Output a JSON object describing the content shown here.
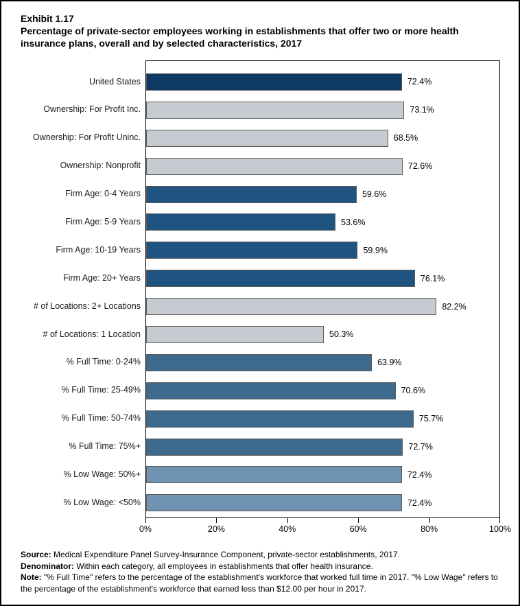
{
  "title": {
    "exhibit": "Exhibit 1.17",
    "subtitle": "Percentage of private-sector employees working in establishments that offer two or more health insurance plans, overall and by selected characteristics, 2017"
  },
  "chart_data": {
    "type": "bar",
    "orientation": "horizontal",
    "title": "Percentage of private-sector employees working in establishments that offer two or more health insurance plans, overall and by selected characteristics, 2017",
    "categories": [
      "United States",
      "Ownership: For Profit Inc.",
      "Ownership: For Profit Uninc.",
      "Ownership: Nonprofit",
      "Firm Age: 0-4 Years",
      "Firm Age: 5-9 Years",
      "Firm Age: 10-19 Years",
      "Firm Age: 20+ Years",
      "# of Locations: 2+ Locations",
      "# of Locations: 1 Location",
      "% Full Time: 0-24%",
      "% Full Time: 25-49%",
      "% Full Time: 50-74%",
      "% Full Time: 75%+",
      "% Low Wage: 50%+",
      "% Low Wage: <50%"
    ],
    "values": [
      72.4,
      73.1,
      68.5,
      72.6,
      59.6,
      53.6,
      59.9,
      76.1,
      82.2,
      50.3,
      63.9,
      70.6,
      75.7,
      72.7,
      72.4,
      72.4
    ],
    "value_labels": [
      "72.4%",
      "73.1%",
      "68.5%",
      "72.6%",
      "59.6%",
      "53.6%",
      "59.9%",
      "76.1%",
      "82.2%",
      "50.3%",
      "63.9%",
      "70.6%",
      "75.7%",
      "72.7%",
      "72.4%",
      "72.4%"
    ],
    "bar_colors": [
      "#0d3a63",
      "#c6cbd2",
      "#c6cbd2",
      "#c6cbd2",
      "#1f5480",
      "#1f5480",
      "#1f5480",
      "#1f5480",
      "#c6cbd2",
      "#c6cbd2",
      "#3e6a8e",
      "#3e6a8e",
      "#3e6a8e",
      "#3e6a8e",
      "#6f93b1",
      "#6f93b1"
    ],
    "xlabel": "",
    "ylabel": "",
    "xlim": [
      0,
      100
    ],
    "x_ticks": [
      "0%",
      "20%",
      "40%",
      "60%",
      "80%",
      "100%"
    ],
    "x_tick_positions": [
      0,
      20,
      40,
      60,
      80,
      100
    ],
    "grid": false,
    "legend": "none"
  },
  "colors": {
    "bar_border": "#595959",
    "axis": "#000000",
    "label_text": "#1a1a1a",
    "page_border": "#000000"
  },
  "footer": {
    "source_label": "Source:",
    "source_text": " Medical Expenditure Panel Survey-Insurance Component, private-sector establishments, 2017.",
    "denominator_label": "Denominator:",
    "denominator_text": " Within each category, all employees in establishments that offer health insurance.",
    "note_label": "Note:",
    "note_text": " \"% Full Time\" refers to the percentage of the establishment's workforce that worked full time in 2017. \"% Low Wage\" refers to the percentage of the establishment's workforce that earned less than $12.00 per hour in 2017."
  }
}
